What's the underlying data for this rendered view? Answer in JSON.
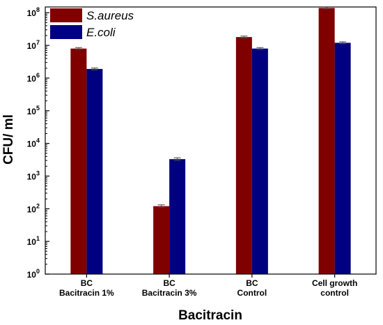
{
  "chart_data": {
    "type": "bar",
    "yscale": "log",
    "ylim": [
      1,
      150000000
    ],
    "yticks": [
      {
        "exp": "0",
        "value": 1
      },
      {
        "exp": "1",
        "value": 10
      },
      {
        "exp": "2",
        "value": 100
      },
      {
        "exp": "3",
        "value": 1000
      },
      {
        "exp": "4",
        "value": 10000
      },
      {
        "exp": "5",
        "value": 100000
      },
      {
        "exp": "6",
        "value": 1000000
      },
      {
        "exp": "7",
        "value": 10000000
      },
      {
        "exp": "8",
        "value": 100000000
      }
    ],
    "tick_base": "10",
    "xlabel": "Bacitracin",
    "ylabel": "CFU/ ml",
    "categories": [
      [
        "BC",
        "Bacitracin 1%"
      ],
      [
        "BC",
        "Bacitracin 3%"
      ],
      [
        "BC",
        "Control"
      ],
      [
        "Cell growth",
        "control"
      ]
    ],
    "series": [
      {
        "name": "S.aureus",
        "color": "#800000",
        "values": [
          8000000,
          120,
          18000000,
          140000000
        ],
        "errors": [
          0.03,
          0.04,
          0.03,
          0.03
        ]
      },
      {
        "name": "E.coli",
        "color": "#000080",
        "values": [
          1900000,
          3300,
          8000000,
          12000000
        ],
        "errors": [
          0.03,
          0.04,
          0.03,
          0.03
        ]
      }
    ],
    "legend": "top-left",
    "grid": false
  }
}
